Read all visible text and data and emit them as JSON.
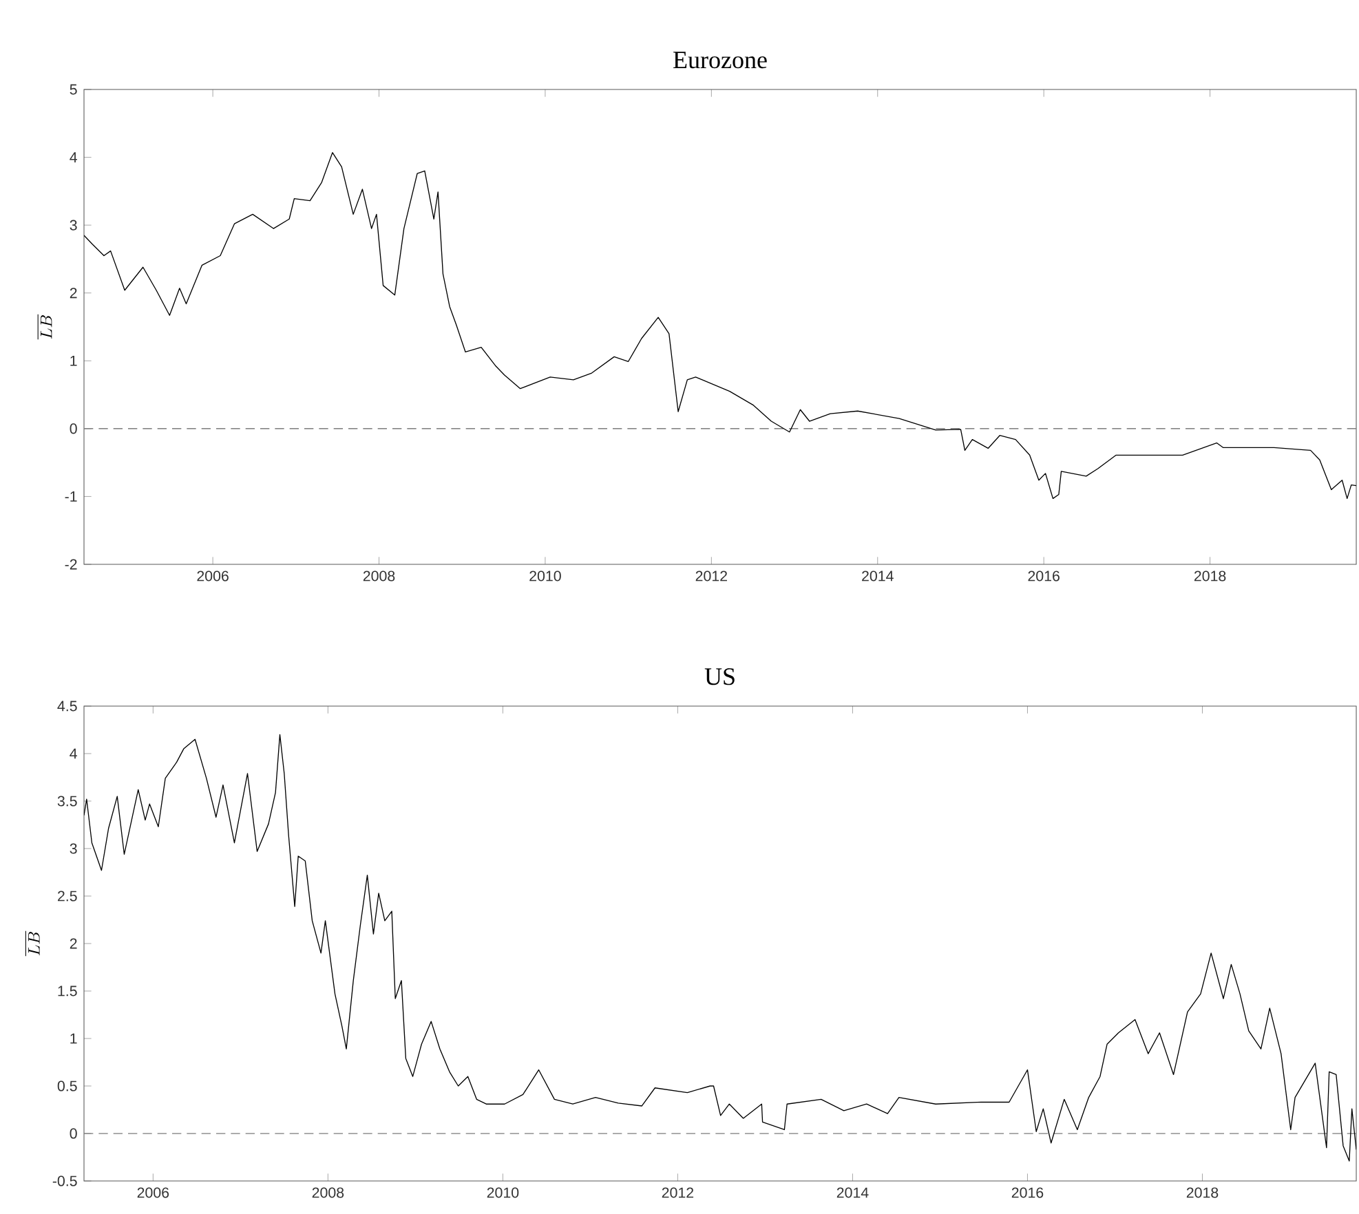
{
  "chart_data": [
    {
      "type": "line",
      "title": "Eurozone",
      "ylabel": "\\overline{LB}",
      "color": "#000000",
      "x": [
        2004.45,
        2004.55,
        2004.69,
        2004.77,
        2004.94,
        2005.16,
        2005.32,
        2005.48,
        2005.6,
        2005.68,
        2005.87,
        2006.09,
        2006.26,
        2006.48,
        2006.73,
        2006.92,
        2006.98,
        2007.17,
        2007.31,
        2007.44,
        2007.55,
        2007.69,
        2007.8,
        2007.91,
        2007.97,
        2008.05,
        2008.19,
        2008.3,
        2008.46,
        2008.55,
        2008.66,
        2008.71,
        2008.77,
        2008.85,
        2008.93,
        2009.04,
        2009.23,
        2009.4,
        2009.51,
        2009.7,
        2010.06,
        2010.34,
        2010.56,
        2010.83,
        2011.0,
        2011.16,
        2011.36,
        2011.49,
        2011.6,
        2011.71,
        2011.81,
        2011.89,
        2012.22,
        2012.5,
        2012.72,
        2012.94,
        2013.07,
        2013.18,
        2013.43,
        2013.76,
        2014.26,
        2014.7,
        2015.0,
        2015.05,
        2015.14,
        2015.33,
        2015.47,
        2015.66,
        2015.83,
        2015.94,
        2016.02,
        2016.11,
        2016.18,
        2016.21,
        2016.51,
        2016.65,
        2016.87,
        2017.28,
        2017.67,
        2018.08,
        2018.16,
        2018.77,
        2019.21,
        2019.32,
        2019.46,
        2019.59,
        2019.65,
        2019.7,
        2019.76
      ],
      "values": [
        2.85,
        2.72,
        2.55,
        2.62,
        2.04,
        2.38,
        2.04,
        1.67,
        2.07,
        1.84,
        2.41,
        2.55,
        3.02,
        3.16,
        2.95,
        3.09,
        3.39,
        3.36,
        3.63,
        4.07,
        3.86,
        3.16,
        3.53,
        2.95,
        3.16,
        2.11,
        1.97,
        2.95,
        3.76,
        3.8,
        3.09,
        3.49,
        2.28,
        1.8,
        1.53,
        1.13,
        1.2,
        0.93,
        0.79,
        0.59,
        0.76,
        0.72,
        0.82,
        1.06,
        0.99,
        1.33,
        1.64,
        1.4,
        0.25,
        0.72,
        0.76,
        0.72,
        0.55,
        0.35,
        0.11,
        -0.05,
        0.28,
        0.11,
        0.22,
        0.26,
        0.15,
        -0.02,
        -0.01,
        -0.32,
        -0.16,
        -0.29,
        -0.1,
        -0.16,
        -0.39,
        -0.76,
        -0.66,
        -1.03,
        -0.97,
        -0.63,
        -0.7,
        -0.59,
        -0.39,
        -0.39,
        -0.39,
        -0.21,
        -0.28,
        -0.28,
        -0.32,
        -0.46,
        -0.9,
        -0.76,
        -1.03,
        -0.83,
        -0.84
      ],
      "xlim": [
        2004.45,
        2019.76
      ],
      "xticks": [
        2006,
        2008,
        2010,
        2012,
        2014,
        2016,
        2018
      ],
      "ylim": [
        -2,
        5
      ],
      "yticks": [
        -2,
        -1,
        0,
        1,
        2,
        3,
        4,
        5
      ],
      "ref_lines": [
        {
          "axis": "y",
          "value": 0,
          "color": "#808080",
          "line_style": "dashed"
        }
      ]
    },
    {
      "type": "line",
      "title": "US",
      "ylabel": "\\overline{LB}",
      "color": "#000000",
      "x": [
        2005.21,
        2005.24,
        2005.3,
        2005.41,
        2005.49,
        2005.59,
        2005.67,
        2005.83,
        2005.91,
        2005.96,
        2006.06,
        2006.14,
        2006.27,
        2006.35,
        2006.48,
        2006.61,
        2006.72,
        2006.8,
        2006.93,
        2007.08,
        2007.19,
        2007.32,
        2007.4,
        2007.45,
        2007.5,
        2007.55,
        2007.62,
        2007.66,
        2007.74,
        2007.82,
        2007.92,
        2007.97,
        2008.08,
        2008.16,
        2008.21,
        2008.29,
        2008.37,
        2008.45,
        2008.52,
        2008.58,
        2008.65,
        2008.73,
        2008.77,
        2008.84,
        2008.89,
        2008.97,
        2009.07,
        2009.18,
        2009.28,
        2009.39,
        2009.49,
        2009.6,
        2009.7,
        2009.81,
        2010.02,
        2010.23,
        2010.41,
        2010.59,
        2010.8,
        2011.06,
        2011.32,
        2011.59,
        2011.74,
        2012.11,
        2012.37,
        2012.41,
        2012.49,
        2012.59,
        2012.75,
        2012.96,
        2012.97,
        2013.22,
        2013.25,
        2013.64,
        2013.9,
        2014.16,
        2014.4,
        2014.53,
        2014.95,
        2015.47,
        2015.79,
        2016.0,
        2016.1,
        2016.18,
        2016.27,
        2016.42,
        2016.57,
        2016.7,
        2016.83,
        2016.91,
        2017.04,
        2017.23,
        2017.38,
        2017.51,
        2017.67,
        2017.83,
        2017.98,
        2018.1,
        2018.24,
        2018.33,
        2018.43,
        2018.53,
        2018.67,
        2018.77,
        2018.9,
        2019.01,
        2019.06,
        2019.29,
        2019.42,
        2019.45,
        2019.53,
        2019.61,
        2019.68,
        2019.71,
        2019.76
      ],
      "values": [
        3.35,
        3.52,
        3.06,
        2.77,
        3.21,
        3.55,
        2.94,
        3.62,
        3.3,
        3.47,
        3.23,
        3.74,
        3.91,
        4.05,
        4.15,
        3.74,
        3.33,
        3.67,
        3.06,
        3.79,
        2.97,
        3.26,
        3.59,
        4.2,
        3.79,
        3.14,
        2.39,
        2.92,
        2.87,
        2.24,
        1.9,
        2.24,
        1.47,
        1.13,
        0.89,
        1.61,
        2.19,
        2.72,
        2.1,
        2.53,
        2.24,
        2.34,
        1.42,
        1.61,
        0.79,
        0.6,
        0.94,
        1.18,
        0.89,
        0.65,
        0.5,
        0.6,
        0.36,
        0.31,
        0.31,
        0.41,
        0.67,
        0.36,
        0.31,
        0.38,
        0.32,
        0.29,
        0.48,
        0.43,
        0.5,
        0.5,
        0.19,
        0.31,
        0.16,
        0.31,
        0.12,
        0.04,
        0.31,
        0.36,
        0.24,
        0.31,
        0.21,
        0.38,
        0.31,
        0.33,
        0.33,
        0.67,
        0.02,
        0.26,
        -0.1,
        0.36,
        0.04,
        0.38,
        0.6,
        0.94,
        1.06,
        1.2,
        0.84,
        1.06,
        0.62,
        1.28,
        1.47,
        1.9,
        1.42,
        1.78,
        1.47,
        1.08,
        0.89,
        1.32,
        0.84,
        0.04,
        0.38,
        0.74,
        -0.15,
        0.65,
        0.62,
        -0.13,
        -0.29,
        0.26,
        -0.17
      ],
      "xlim": [
        2005.21,
        2019.76
      ],
      "xticks": [
        2006,
        2008,
        2010,
        2012,
        2014,
        2016,
        2018
      ],
      "ylim": [
        -0.5,
        4.5
      ],
      "yticks": [
        -0.5,
        0,
        0.5,
        1,
        1.5,
        2,
        2.5,
        3,
        3.5,
        4,
        4.5
      ],
      "ref_lines": [
        {
          "axis": "y",
          "value": 0,
          "color": "#808080",
          "line_style": "dashed"
        }
      ]
    }
  ]
}
